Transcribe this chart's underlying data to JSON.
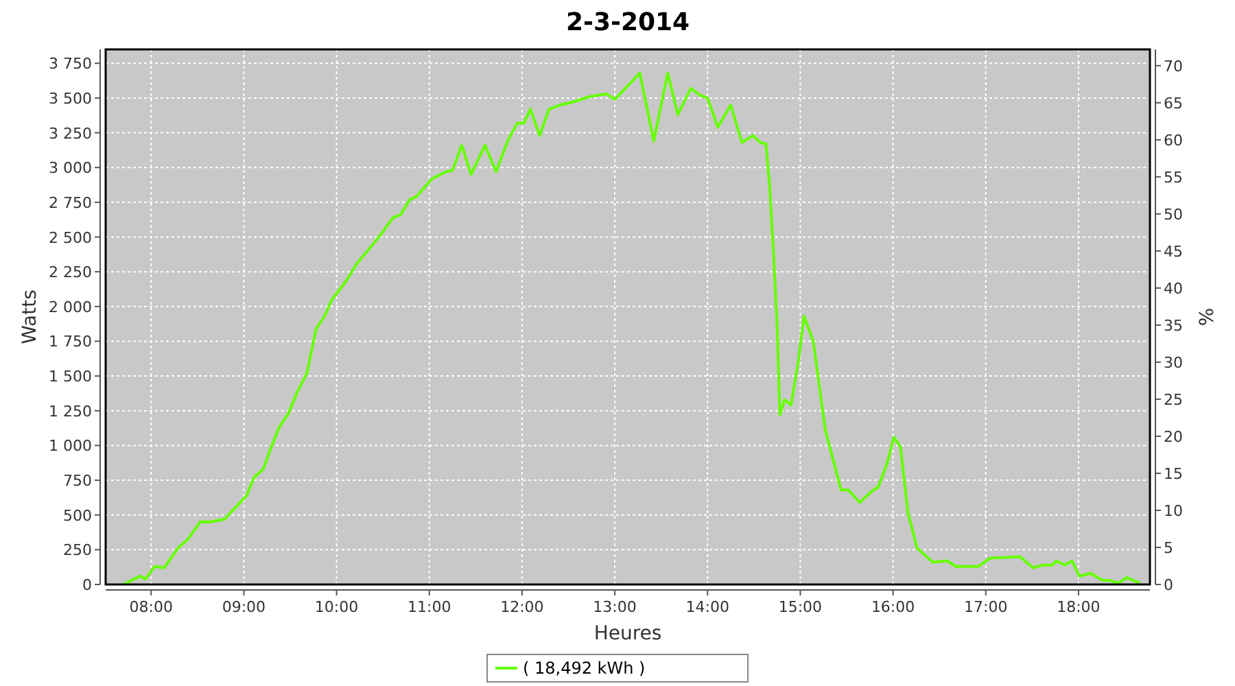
{
  "chart_data": {
    "type": "line",
    "title": "2-3-2014",
    "xlabel": "Heures",
    "ylabel": "Watts",
    "y2label": "%",
    "xlim": [
      7.51,
      18.77
    ],
    "ylim": [
      0,
      3850
    ],
    "y2lim": [
      0,
      72.2
    ],
    "xticks": [
      {
        "value": 8,
        "label": "08:00"
      },
      {
        "value": 9,
        "label": "09:00"
      },
      {
        "value": 10,
        "label": "10:00"
      },
      {
        "value": 11,
        "label": "11:00"
      },
      {
        "value": 12,
        "label": "12:00"
      },
      {
        "value": 13,
        "label": "13:00"
      },
      {
        "value": 14,
        "label": "14:00"
      },
      {
        "value": 15,
        "label": "15:00"
      },
      {
        "value": 16,
        "label": "16:00"
      },
      {
        "value": 17,
        "label": "17:00"
      },
      {
        "value": 18,
        "label": "18:00"
      }
    ],
    "yticks": [
      0,
      250,
      500,
      750,
      {
        "value": 1000,
        "label": "1 000"
      },
      {
        "value": 1250,
        "label": "1 250"
      },
      {
        "value": 1500,
        "label": "1 500"
      },
      {
        "value": 1750,
        "label": "1 750"
      },
      {
        "value": 2000,
        "label": "2 000"
      },
      {
        "value": 2250,
        "label": "2 250"
      },
      {
        "value": 2500,
        "label": "2 500"
      },
      {
        "value": 2750,
        "label": "2 750"
      },
      {
        "value": 3000,
        "label": "3 000"
      },
      {
        "value": 3250,
        "label": "3 250"
      },
      {
        "value": 3500,
        "label": "3 500"
      },
      {
        "value": 3750,
        "label": "3 750"
      }
    ],
    "y2ticks": [
      0,
      5,
      10,
      15,
      20,
      25,
      30,
      35,
      40,
      45,
      50,
      55,
      60,
      65,
      70
    ],
    "grid": true,
    "legend": "bottom",
    "line_style": "solid",
    "x": [
      7.7,
      7.88,
      7.94,
      8.04,
      8.14,
      8.3,
      8.39,
      8.53,
      8.64,
      8.79,
      8.89,
      9.03,
      9.11,
      9.21,
      9.28,
      9.38,
      9.48,
      9.58,
      9.68,
      9.78,
      9.87,
      9.95,
      10.1,
      10.22,
      10.37,
      10.49,
      10.61,
      10.69,
      10.79,
      10.86,
      11.03,
      11.18,
      11.25,
      11.35,
      11.45,
      11.6,
      11.72,
      11.85,
      11.95,
      12.02,
      12.09,
      12.19,
      12.29,
      12.41,
      12.54,
      12.73,
      12.91,
      13.0,
      13.13,
      13.27,
      13.42,
      13.57,
      13.68,
      13.82,
      13.92,
      14.0,
      14.11,
      14.25,
      14.37,
      14.49,
      14.57,
      14.63,
      14.67,
      14.71,
      14.75,
      14.78,
      14.83,
      14.9,
      14.98,
      15.04,
      15.14,
      15.27,
      15.44,
      15.52,
      15.64,
      15.77,
      15.84,
      15.94,
      16.01,
      16.08,
      16.16,
      16.26,
      16.43,
      16.58,
      16.68,
      16.92,
      17.05,
      17.37,
      17.51,
      17.62,
      17.72,
      17.76,
      17.85,
      17.93,
      18.01,
      18.13,
      18.26,
      18.33,
      18.43,
      18.52,
      18.66
    ],
    "series": [
      {
        "name": "( 18,492 kWh )",
        "color": "#66ff00",
        "values": [
          0,
          60,
          40,
          130,
          120,
          270,
          320,
          450,
          450,
          470,
          540,
          640,
          770,
          830,
          960,
          1130,
          1230,
          1390,
          1520,
          1840,
          1930,
          2050,
          2180,
          2310,
          2430,
          2530,
          2640,
          2660,
          2770,
          2790,
          2920,
          2970,
          2980,
          3160,
          2950,
          3160,
          2970,
          3200,
          3320,
          3320,
          3420,
          3230,
          3420,
          3450,
          3470,
          3510,
          3530,
          3490,
          3580,
          3680,
          3190,
          3680,
          3380,
          3570,
          3520,
          3500,
          3290,
          3450,
          3180,
          3230,
          3180,
          3170,
          2860,
          2400,
          1870,
          1220,
          1330,
          1290,
          1610,
          1930,
          1750,
          1110,
          680,
          680,
          590,
          670,
          700,
          880,
          1060,
          990,
          520,
          260,
          160,
          170,
          130,
          130,
          190,
          200,
          120,
          140,
          140,
          170,
          140,
          170,
          60,
          80,
          30,
          30,
          10,
          50,
          10
        ]
      }
    ]
  }
}
